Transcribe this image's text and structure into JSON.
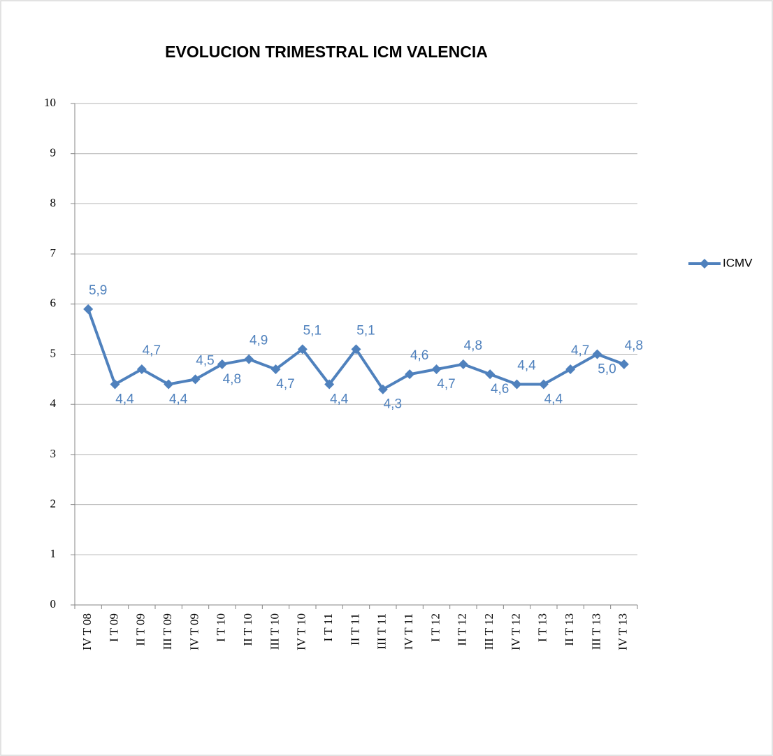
{
  "chart_data": {
    "type": "line",
    "title": "EVOLUCION TRIMESTRAL ICM VALENCIA",
    "categories": [
      "IV T 08",
      "I T 09",
      "II T 09",
      "III T 09",
      "IV T 09",
      "I T 10",
      "II T 10",
      "III T 10",
      "IV T 10",
      "I T 11",
      "II T 11",
      "III T 11",
      "IV T 11",
      "I T 12",
      "II T 12",
      "III T 12",
      "IV T 12",
      "I T 13",
      "II T 13",
      "III T 13",
      "IV T 13"
    ],
    "series": [
      {
        "name": "ICMV",
        "color": "#4f81bd",
        "values": [
          5.9,
          4.4,
          4.7,
          4.4,
          4.5,
          4.8,
          4.9,
          4.7,
          5.1,
          4.4,
          5.1,
          4.3,
          4.6,
          4.7,
          4.8,
          4.6,
          4.4,
          4.4,
          4.7,
          5.0,
          4.8
        ],
        "value_labels": [
          "5,9",
          "4,4",
          "4,7",
          "4,4",
          "4,5",
          "4,8",
          "4,9",
          "4,7",
          "5,1",
          "4,4",
          "5,1",
          "4,3",
          "4,6",
          "4,7",
          "4,8",
          "4,6",
          "4,4",
          "4,4",
          "4,7",
          "5,0",
          "4,8"
        ]
      }
    ],
    "ylim": [
      0,
      10
    ],
    "yticks": [
      0,
      1,
      2,
      3,
      4,
      5,
      6,
      7,
      8,
      9,
      10
    ],
    "grid": true,
    "legend": "right"
  }
}
